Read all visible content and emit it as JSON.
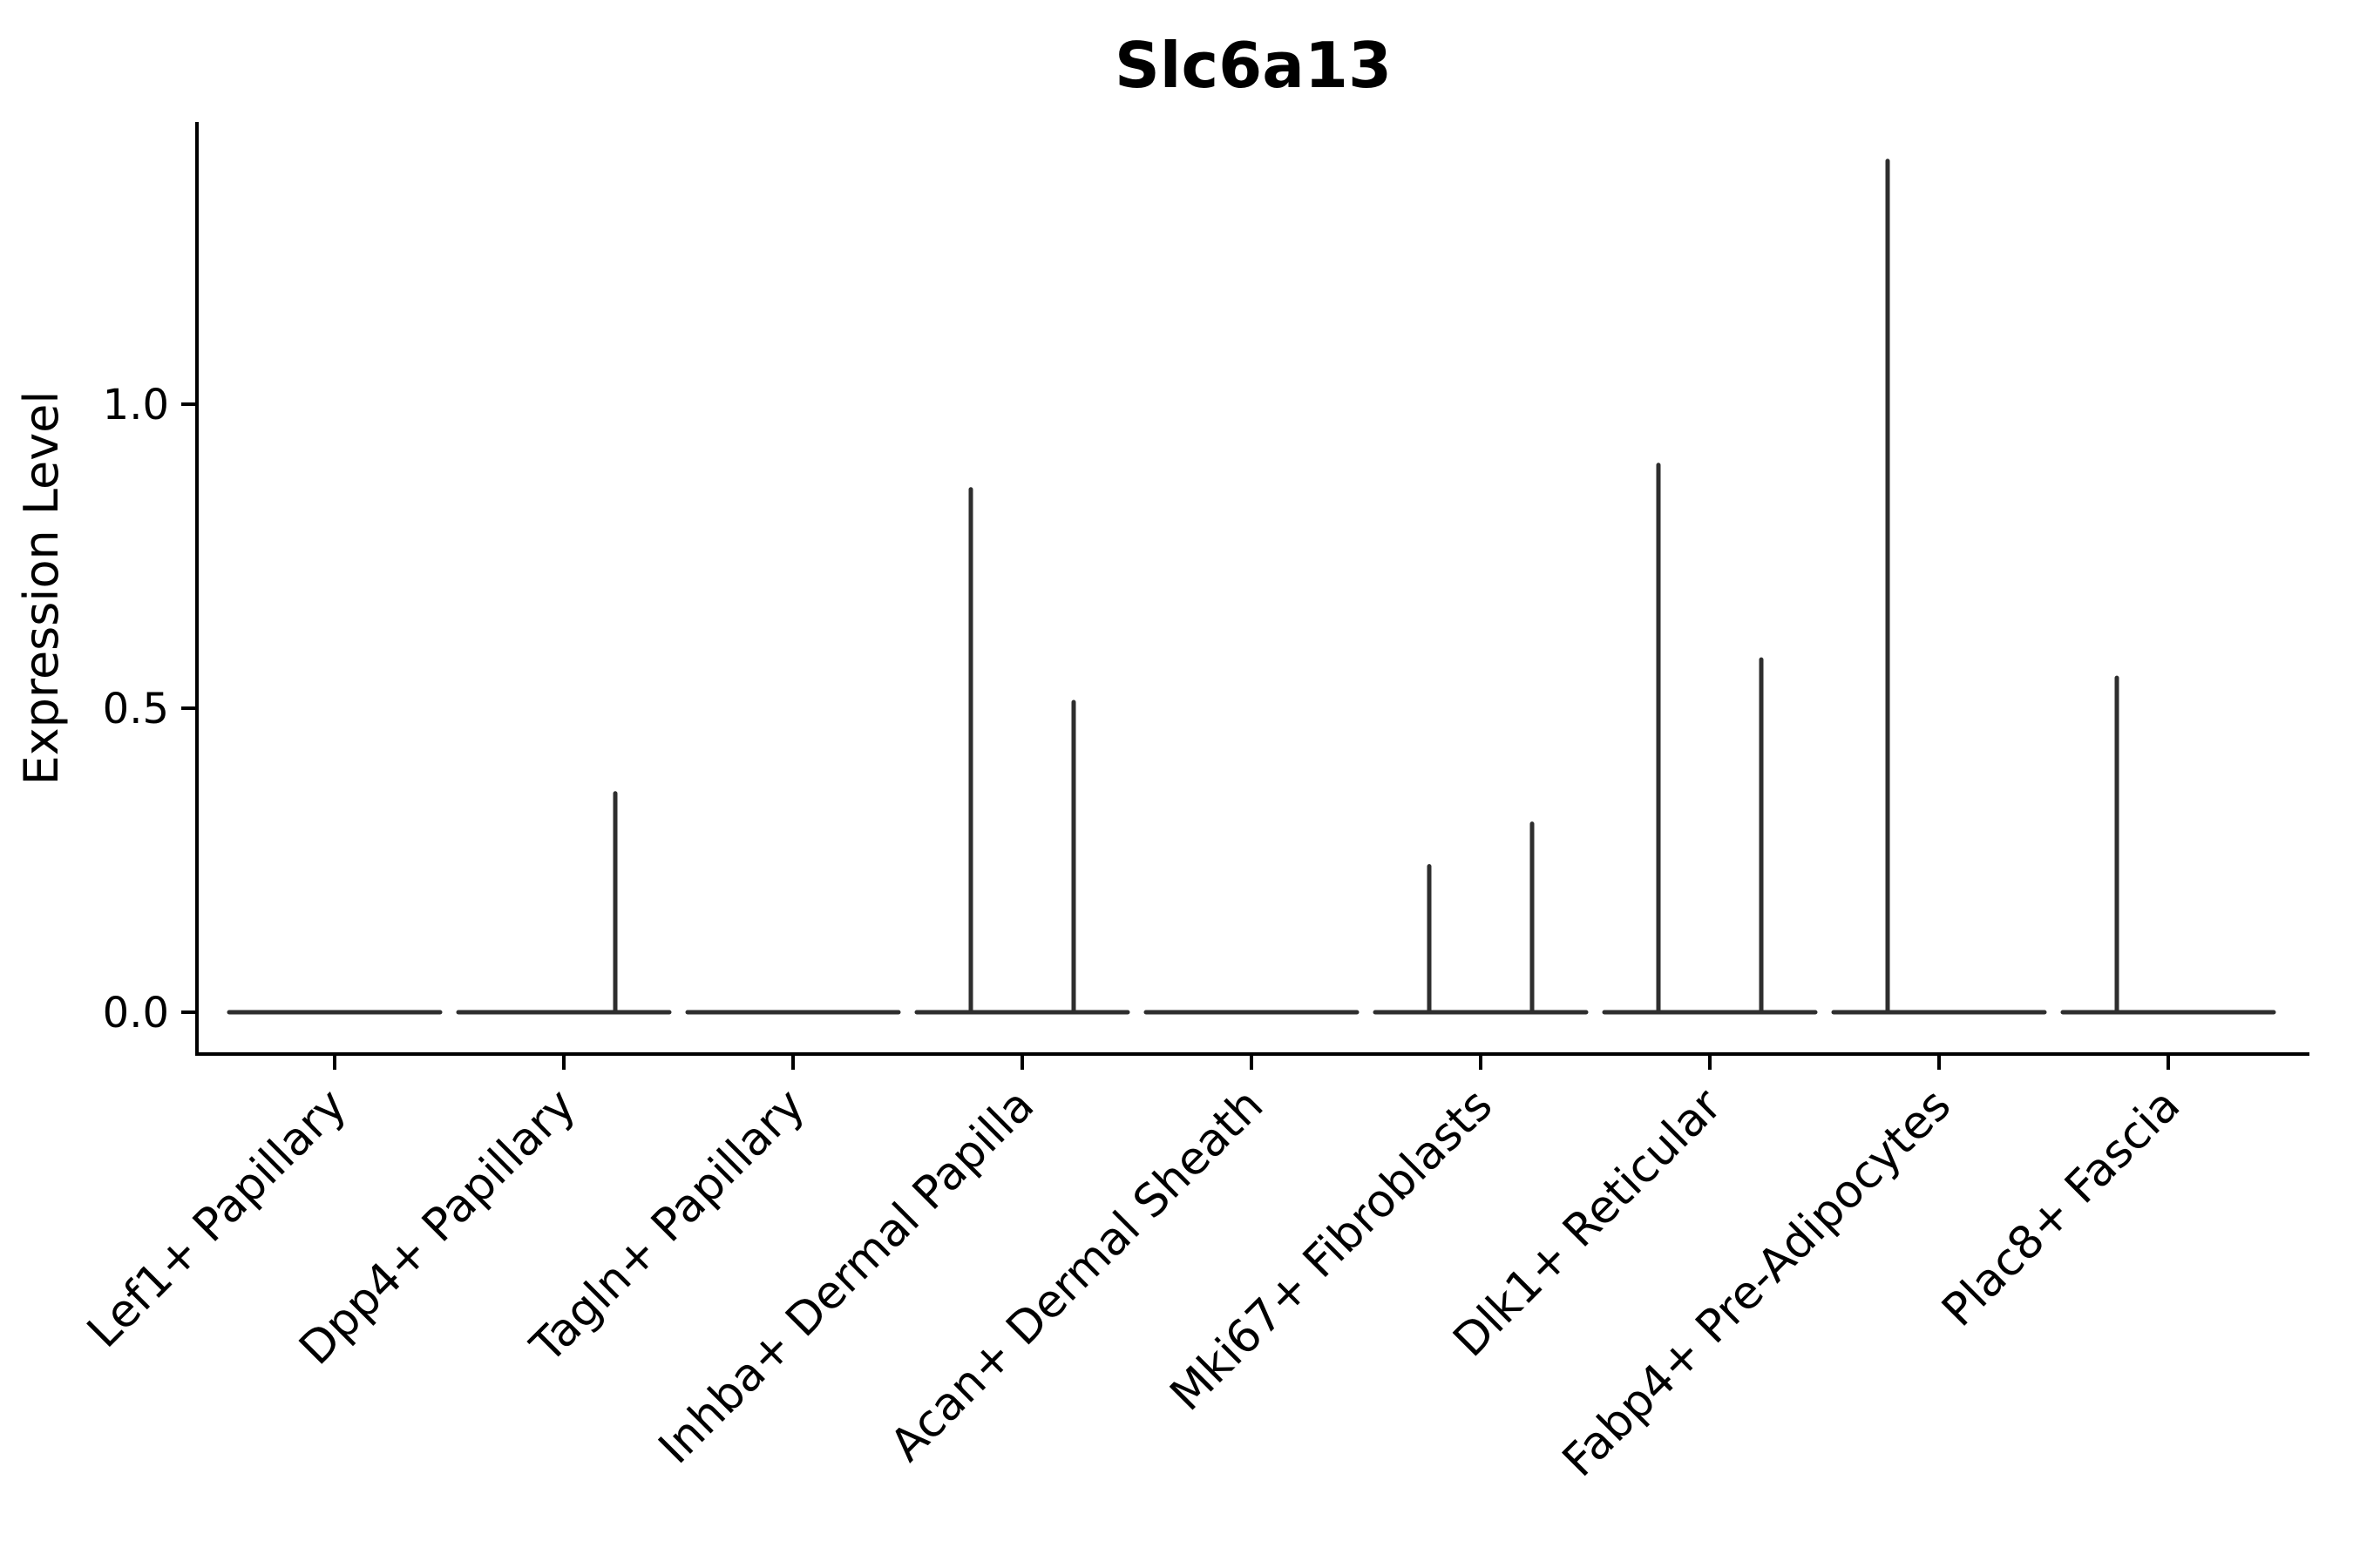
{
  "chart_data": {
    "type": "violin",
    "title": "Slc6a13",
    "xlabel": "",
    "ylabel": "Expression Level",
    "yticks": [
      0.0,
      0.5,
      1.0
    ],
    "ylim": [
      -0.07,
      1.46
    ],
    "grid": false,
    "legend": "none",
    "categories": [
      "Lef1+ Papillary",
      "Dpp4+ Papillary",
      "Tagln+ Papillary",
      "Inhba+ Dermal Papilla",
      "Acan+ Dermal Sheath",
      "Mki67+ Fibroblasts",
      "Dlk1+ Reticular",
      "Fabp4+ Pre-Adipocytes",
      "Plac8+ Fascia"
    ],
    "violins": [
      {
        "category": "Lef1+ Papillary",
        "baseline_value": 0.0,
        "spikes": []
      },
      {
        "category": "Dpp4+ Papillary",
        "baseline_value": 0.0,
        "spikes": [
          {
            "side": "right",
            "max": 0.36
          }
        ]
      },
      {
        "category": "Tagln+ Papillary",
        "baseline_value": 0.0,
        "spikes": []
      },
      {
        "category": "Inhba+ Dermal Papilla",
        "baseline_value": 0.0,
        "spikes": [
          {
            "side": "left",
            "max": 0.86
          },
          {
            "side": "right",
            "max": 0.51
          }
        ]
      },
      {
        "category": "Acan+ Dermal Sheath",
        "baseline_value": 0.0,
        "spikes": []
      },
      {
        "category": "Mki67+ Fibroblasts",
        "baseline_value": 0.0,
        "spikes": [
          {
            "side": "left",
            "max": 0.24
          },
          {
            "side": "right",
            "max": 0.31
          }
        ]
      },
      {
        "category": "Dlk1+ Reticular",
        "baseline_value": 0.0,
        "spikes": [
          {
            "side": "left",
            "max": 0.9
          },
          {
            "side": "right",
            "max": 0.58
          }
        ]
      },
      {
        "category": "Fabp4+ Pre-Adipocytes",
        "baseline_value": 0.0,
        "spikes": [
          {
            "side": "left",
            "max": 1.4
          }
        ]
      },
      {
        "category": "Plac8+ Fascia",
        "baseline_value": 0.0,
        "spikes": [
          {
            "side": "left",
            "max": 0.55
          }
        ]
      }
    ],
    "colors": {
      "violin_line": "#2e2e2e",
      "axis": "#000000",
      "text": "#000000",
      "background": "#ffffff"
    }
  }
}
